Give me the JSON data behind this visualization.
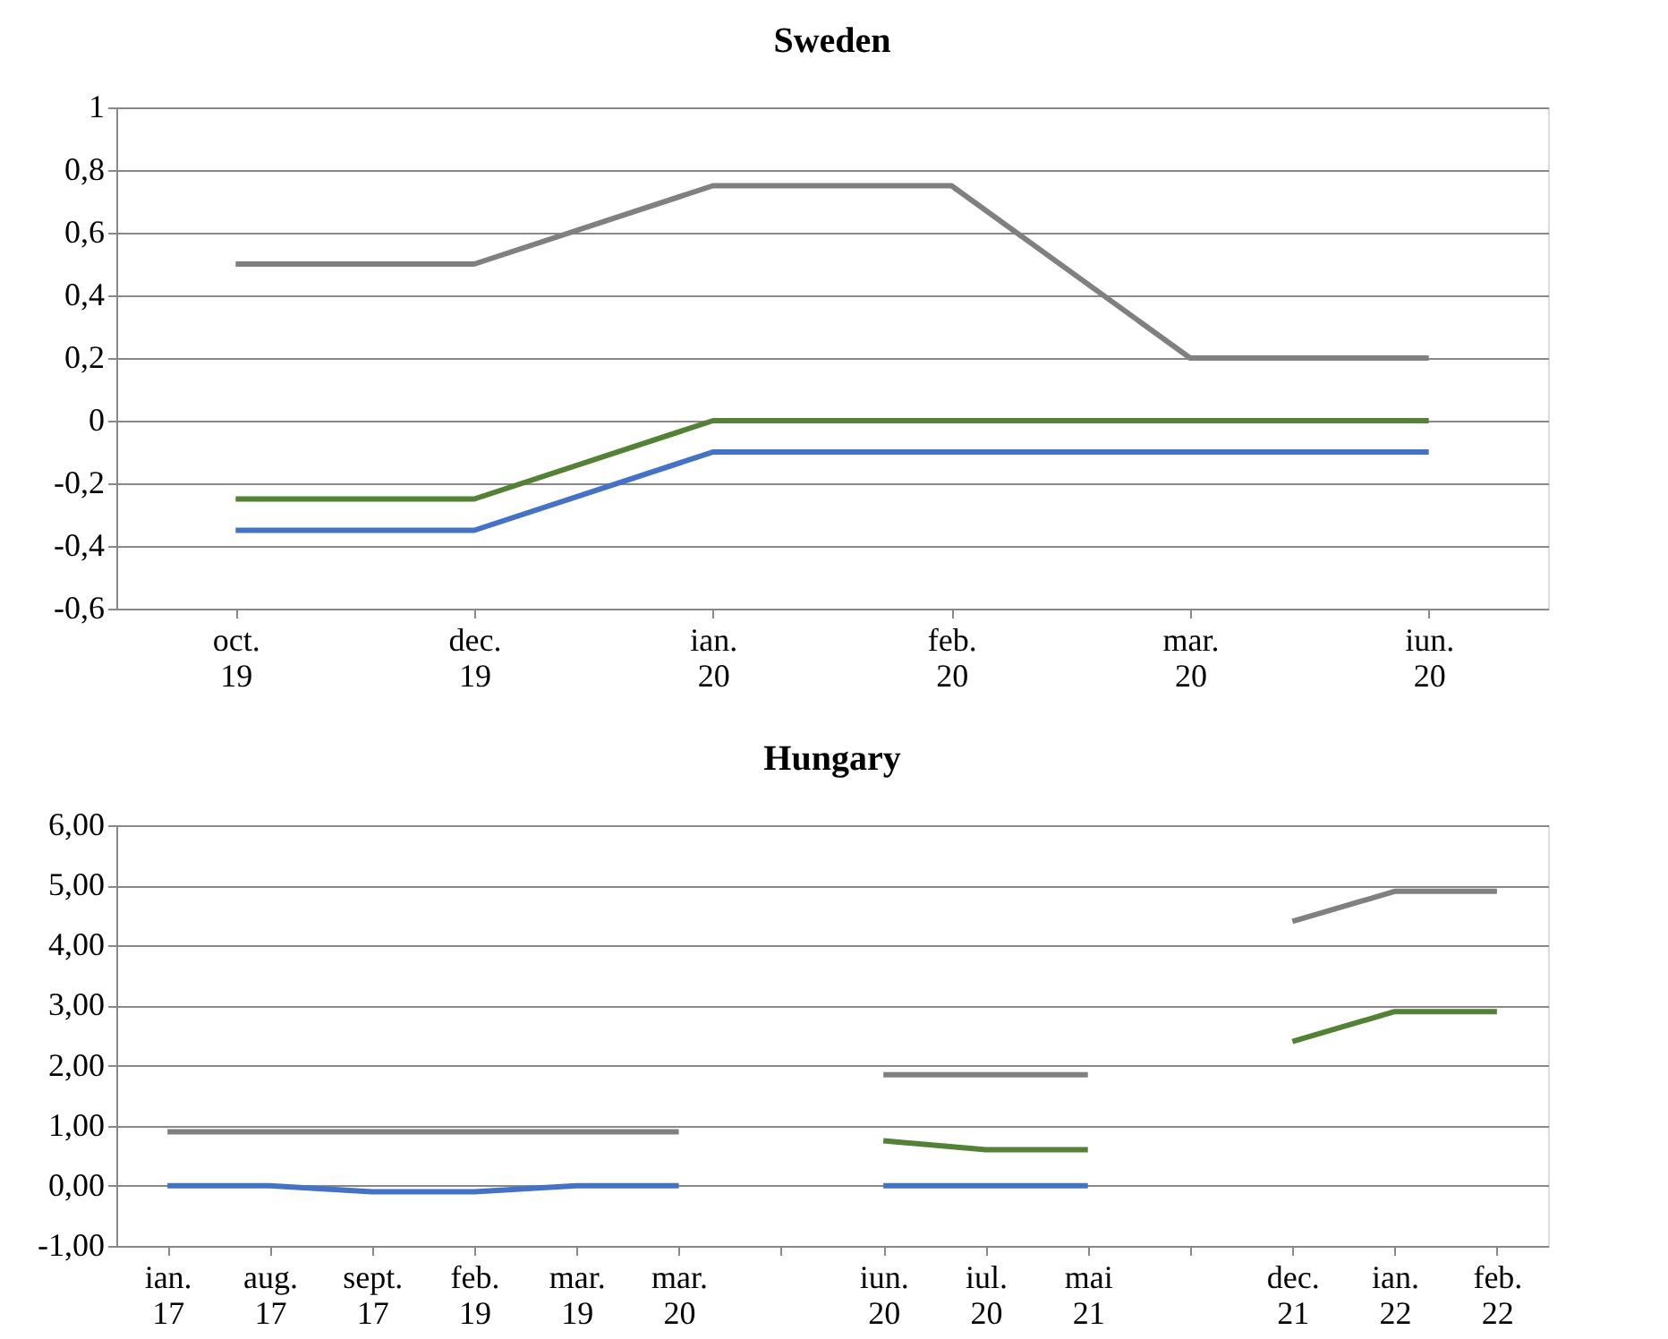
{
  "chart_data": [
    {
      "type": "line",
      "title": "Sweden",
      "categories": [
        "oct. 19",
        "dec. 19",
        "ian. 20",
        "feb. 20",
        "mar. 20",
        "iun. 20"
      ],
      "series": [
        {
          "color": "#808080",
          "values": [
            0.5,
            0.5,
            0.75,
            0.75,
            0.2,
            0.2
          ]
        },
        {
          "color": "#538135",
          "values": [
            -0.25,
            -0.25,
            0,
            0,
            0,
            0
          ]
        },
        {
          "color": "#4472c4",
          "values": [
            -0.35,
            -0.35,
            -0.1,
            -0.1,
            -0.1,
            -0.1
          ]
        }
      ],
      "ylim": [
        -0.6,
        1
      ],
      "yticks": [
        {
          "value": -0.6,
          "label": "-0,6"
        },
        {
          "value": -0.4,
          "label": "-0,4"
        },
        {
          "value": -0.2,
          "label": "-0,2"
        },
        0,
        {
          "value": 0.2,
          "label": "0,2"
        },
        {
          "value": 0.4,
          "label": "0,4"
        },
        {
          "value": 0.6,
          "label": "0,6"
        },
        {
          "value": 0.8,
          "label": "0,8"
        },
        1
      ],
      "grid": "y",
      "legend": false,
      "marker": "none",
      "line_style": "solid"
    },
    {
      "type": "line",
      "title": "Hungary",
      "categories": [
        "ian. 17",
        "aug. 17",
        "sept. 17",
        "feb. 19",
        "mar. 19",
        "mar. 20",
        null,
        "iun. 20",
        "iul. 20",
        "mai 21",
        null,
        "dec. 21",
        "ian. 22",
        "feb. 22"
      ],
      "series": [
        {
          "color": "#808080",
          "values": [
            0.9,
            0.9,
            0.9,
            0.9,
            0.9,
            0.9,
            null,
            1.85,
            1.85,
            1.85,
            null,
            4.4,
            4.9,
            4.9
          ]
        },
        {
          "color": "#538135",
          "values": [
            null,
            null,
            null,
            null,
            null,
            null,
            null,
            0.75,
            0.6,
            0.6,
            null,
            2.4,
            2.9,
            2.9
          ]
        },
        {
          "color": "#4472c4",
          "values": [
            0,
            0,
            -0.1,
            -0.1,
            0,
            0,
            null,
            0,
            0,
            0,
            null,
            null,
            null,
            null
          ]
        }
      ],
      "ylim": [
        -1,
        6
      ],
      "yticks": [
        {
          "value": -1,
          "label": "-1,00"
        },
        {
          "value": 0,
          "label": "0,00"
        },
        {
          "value": 1,
          "label": "1,00"
        },
        {
          "value": 2,
          "label": "2,00"
        },
        {
          "value": 3,
          "label": "3,00"
        },
        {
          "value": 4,
          "label": "4,00"
        },
        {
          "value": 5,
          "label": "5,00"
        },
        {
          "value": 6,
          "label": "6,00"
        }
      ],
      "grid": "y",
      "legend": false,
      "marker": "none",
      "line_style": "solid"
    }
  ]
}
